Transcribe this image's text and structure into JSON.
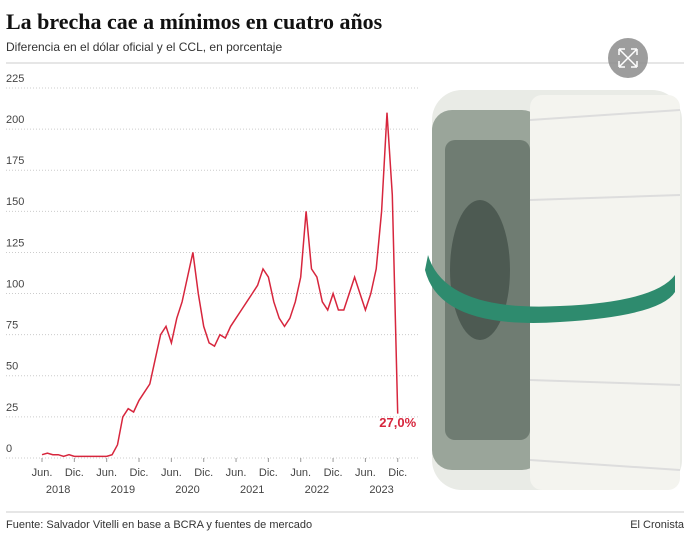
{
  "chart_data": {
    "type": "line",
    "title": "La brecha cae a mínimos en cuatro años",
    "subtitle": "Diferencia en el dólar oficial y el CCL, en porcentaje",
    "source": "Fuente: Salvador Vitelli en base a BCRA y fuentes de mercado",
    "brand": "El Cronista",
    "color": "#d7263d",
    "x": [
      "2018-06",
      "2018-07",
      "2018-08",
      "2018-09",
      "2018-10",
      "2018-11",
      "2018-12",
      "2019-01",
      "2019-02",
      "2019-03",
      "2019-04",
      "2019-05",
      "2019-06",
      "2019-07",
      "2019-08",
      "2019-09",
      "2019-10",
      "2019-11",
      "2019-12",
      "2020-01",
      "2020-02",
      "2020-03",
      "2020-04",
      "2020-05",
      "2020-06",
      "2020-07",
      "2020-08",
      "2020-09",
      "2020-10",
      "2020-11",
      "2020-12",
      "2021-01",
      "2021-02",
      "2021-03",
      "2021-04",
      "2021-05",
      "2021-06",
      "2021-07",
      "2021-08",
      "2021-09",
      "2021-10",
      "2021-11",
      "2021-12",
      "2022-01",
      "2022-02",
      "2022-03",
      "2022-04",
      "2022-05",
      "2022-06",
      "2022-07",
      "2022-08",
      "2022-09",
      "2022-10",
      "2022-11",
      "2022-12",
      "2023-01",
      "2023-02",
      "2023-03",
      "2023-04",
      "2023-05",
      "2023-06",
      "2023-07",
      "2023-08",
      "2023-09",
      "2023-10",
      "2023-11",
      "2023-12"
    ],
    "values": [
      2,
      3,
      2,
      2,
      1,
      2,
      1,
      1,
      1,
      1,
      1,
      1,
      1,
      2,
      8,
      25,
      30,
      28,
      35,
      40,
      45,
      60,
      75,
      80,
      70,
      85,
      95,
      110,
      125,
      100,
      80,
      70,
      68,
      75,
      73,
      80,
      85,
      90,
      95,
      100,
      105,
      115,
      110,
      95,
      85,
      80,
      85,
      95,
      110,
      150,
      115,
      110,
      95,
      90,
      100,
      90,
      90,
      100,
      110,
      100,
      90,
      100,
      115,
      150,
      210,
      160,
      27
    ],
    "value_labels": [
      null,
      null,
      null,
      null,
      null,
      null,
      null,
      null,
      null,
      null,
      null,
      null,
      null,
      null,
      null,
      null,
      null,
      null,
      null,
      null,
      null,
      null,
      null,
      null,
      null,
      null,
      null,
      null,
      null,
      null,
      null,
      null,
      null,
      null,
      null,
      null,
      null,
      null,
      null,
      null,
      null,
      null,
      null,
      null,
      null,
      null,
      null,
      null,
      null,
      null,
      null,
      null,
      null,
      null,
      null,
      null,
      null,
      null,
      null,
      null,
      null,
      null,
      null,
      null,
      null,
      null,
      "27,0%"
    ],
    "ylim": [
      0,
      225
    ],
    "yticks": [
      0,
      25,
      50,
      75,
      100,
      125,
      150,
      175,
      200,
      225
    ],
    "xticks": [
      {
        "value": "2018-06",
        "label": "Jun."
      },
      {
        "value": "2018-12",
        "label": "Dic."
      },
      {
        "value": "2019-06",
        "label": "Jun."
      },
      {
        "value": "2019-12",
        "label": "Dic."
      },
      {
        "value": "2020-06",
        "label": "Jun."
      },
      {
        "value": "2020-12",
        "label": "Dic."
      },
      {
        "value": "2021-06",
        "label": "Jun."
      },
      {
        "value": "2021-12",
        "label": "Dic."
      },
      {
        "value": "2022-06",
        "label": "Jun."
      },
      {
        "value": "2022-12",
        "label": "Dic."
      },
      {
        "value": "2023-06",
        "label": "Jun."
      },
      {
        "value": "2023-12",
        "label": "Dic."
      }
    ],
    "x_group_labels": [
      "2018",
      "2019",
      "2020",
      "2021",
      "2022",
      "2023"
    ],
    "grid": true
  }
}
